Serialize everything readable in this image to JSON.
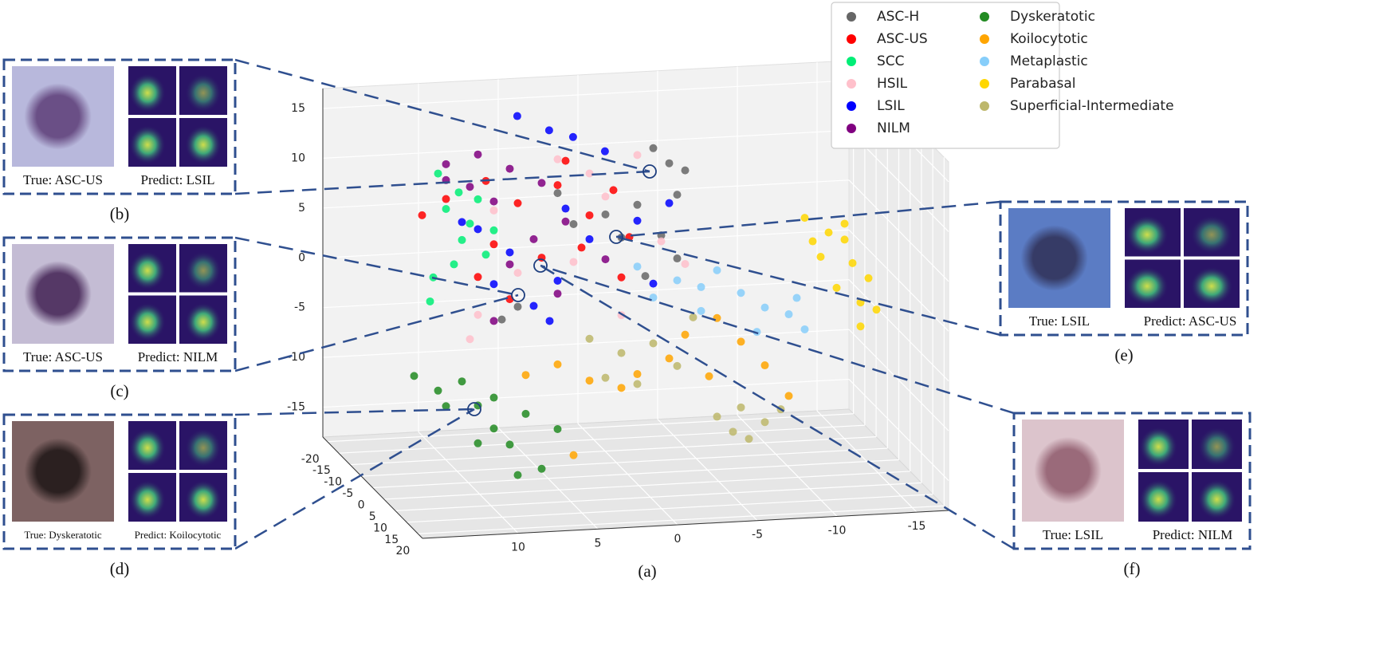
{
  "chart_data": {
    "type": "scatter3d",
    "caption": "(a)",
    "xlim": [
      16,
      -17
    ],
    "ylim": [
      -22,
      22
    ],
    "zlim": [
      -18,
      17
    ],
    "xticks": [
      10,
      5,
      0,
      -5,
      -10,
      -15
    ],
    "yticks": [
      -20,
      -15,
      -10,
      -5,
      0,
      5,
      10,
      15,
      20
    ],
    "zticks": [
      -15,
      -10,
      -5,
      0,
      5,
      10,
      15
    ],
    "grid": true,
    "legend": "upper right",
    "series": [
      {
        "name": "ASC-H",
        "color": "#666666",
        "x": [
          -1.6,
          -2.6,
          -3.1,
          -0.6,
          0.4,
          -2.1,
          -3.1,
          4.4,
          3.4,
          -3.6,
          -1.1,
          6.9,
          7.9,
          1.4
        ],
        "y": [
          0,
          0,
          0,
          0,
          0,
          0,
          0,
          0,
          0,
          0,
          0,
          0,
          0,
          0
        ],
        "z": [
          14.6,
          13,
          9.8,
          9,
          5.8,
          5.8,
          3.4,
          10.6,
          7.4,
          12.2,
          1.8,
          -0.6,
          -1.8,
          8.2
        ]
      },
      {
        "name": "ASC-US",
        "color": "#ff0000",
        "x": [
          11.4,
          8.9,
          6.9,
          4.4,
          2.4,
          0.9,
          8.4,
          5.4,
          2.9,
          0.4,
          9.4,
          7.4,
          12.9,
          3.9,
          -0.1
        ],
        "y": [
          0,
          0,
          0,
          0,
          0,
          0,
          0,
          0,
          0,
          0,
          0,
          0,
          0,
          0,
          0
        ],
        "z": [
          10.6,
          12.2,
          9.8,
          11.4,
          8.2,
          10.6,
          5.8,
          4.2,
          5,
          1.8,
          2.6,
          0.2,
          9.1,
          13.8,
          5.8
        ]
      },
      {
        "name": "SCC",
        "color": "#00ee76",
        "x": [
          11.9,
          11.4,
          10.4,
          10.9,
          9.9,
          12.2,
          9.4,
          8.9,
          12.4,
          10.6,
          8.4
        ],
        "y": [
          0,
          0,
          0,
          0,
          0,
          0,
          0,
          0,
          0,
          0,
          0
        ],
        "z": [
          13.2,
          9.6,
          6.4,
          4,
          8,
          2.8,
          10.4,
          4.8,
          0.4,
          11.2,
          7.2
        ]
      },
      {
        "name": "HSIL",
        "color": "#ffc0cb",
        "x": [
          9.4,
          9.9,
          4.4,
          1.4,
          -0.6,
          -2.1,
          6.9,
          3.4,
          0.4,
          -3.6,
          8.4,
          2.4
        ],
        "y": [
          0,
          0,
          0,
          0,
          0,
          0,
          0,
          0,
          0,
          0,
          0,
          0
        ],
        "z": [
          -1.2,
          -3.6,
          14,
          10,
          14,
          5.2,
          2.8,
          3.6,
          -2,
          2.8,
          9.2,
          12.4
        ]
      },
      {
        "name": "LSIL",
        "color": "#0000ff",
        "x": [
          4.8,
          2.8,
          1.3,
          -0.7,
          9.4,
          7.4,
          4.4,
          2.4,
          -0.6,
          -1.6,
          5.9,
          4.9,
          8.4,
          10.4,
          3.9,
          -2.6
        ],
        "y": [
          -15,
          -15,
          -15,
          -15,
          0,
          0,
          0,
          0,
          0,
          0,
          0,
          0,
          0,
          0,
          0,
          0
        ],
        "z": [
          14.9,
          13.3,
          12.5,
          10.9,
          7.4,
          4.9,
          1.8,
          5.8,
          7.4,
          1,
          -0.6,
          -2.2,
          1.8,
          8.2,
          9,
          9
        ]
      },
      {
        "name": "NILM",
        "color": "#800080",
        "x": [
          11.4,
          9.4,
          7.4,
          9.9,
          8.4,
          5.4,
          3.9,
          5.9,
          7.4,
          4.4,
          1.4,
          8.4,
          11.4
        ],
        "y": [
          0,
          0,
          0,
          0,
          0,
          0,
          0,
          0,
          0,
          0,
          0,
          0,
          0
        ],
        "z": [
          14.1,
          14.9,
          13.3,
          11.7,
          10.1,
          11.7,
          7.7,
          6.1,
          3.7,
          0.5,
          3.7,
          -1.9,
          12.5
        ]
      },
      {
        "name": "Dyskeratotic",
        "color": "#228b22",
        "x": [
          13.4,
          11.9,
          10.4,
          9.4,
          8.4,
          7.4,
          9.4,
          6.4,
          5.4,
          11.4,
          8.4,
          4.4,
          6.9
        ],
        "y": [
          0,
          0,
          0,
          0,
          0,
          0,
          0,
          0,
          0,
          0,
          0,
          0,
          0
        ],
        "z": [
          -7,
          -8.6,
          -7.8,
          -10.3,
          -12.7,
          -14.4,
          -14.1,
          -11.4,
          -17,
          -10.2,
          -9.6,
          -13.1,
          -17.5
        ]
      },
      {
        "name": "Koilocytotic",
        "color": "#ffa500",
        "x": [
          6.4,
          4.4,
          2.4,
          0.4,
          -0.6,
          -2.6,
          -3.6,
          -5.6,
          -7.1,
          -8.6,
          -10.1,
          3.4,
          -5.1
        ],
        "y": [
          0,
          0,
          0,
          0,
          0,
          0,
          0,
          0,
          0,
          0,
          0,
          0,
          0
        ],
        "z": [
          -7.5,
          -6.6,
          -8.4,
          -9.3,
          -8,
          -6.6,
          -4.3,
          -2.8,
          -5.3,
          -7.8,
          -11,
          -15.8,
          -8.6
        ]
      },
      {
        "name": "Metaplastic",
        "color": "#87cefa",
        "x": [
          -0.6,
          -3.1,
          -4.6,
          -5.6,
          -7.1,
          -8.6,
          -10.1,
          -11.1,
          -8.1,
          -4.6,
          -1.6,
          -10.6
        ],
        "y": [
          0,
          0,
          0,
          0,
          0,
          0,
          0,
          0,
          0,
          0,
          0,
          0
        ],
        "z": [
          2.8,
          1.2,
          0.4,
          2,
          -0.4,
          -2,
          -2.8,
          -4.4,
          -4.4,
          -2,
          -0.4,
          -1.2
        ]
      },
      {
        "name": "Parabasal",
        "color": "#ffd700",
        "x": [
          -11.1,
          -12.6,
          -13.6,
          -12.1,
          -14.1,
          -15.1,
          -13.1,
          -15.6,
          -14.6,
          -13.6,
          -11.6,
          -14.6
        ],
        "y": [
          0,
          0,
          0,
          0,
          0,
          0,
          0,
          0,
          0,
          0,
          0,
          0
        ],
        "z": [
          6.8,
          5.2,
          6,
          2.8,
          2,
          0.4,
          -0.4,
          -2.8,
          -4.4,
          4.4,
          4.4,
          -2
        ]
      },
      {
        "name": "Superficial-Intermediate",
        "color": "#bdb76b",
        "x": [
          2.4,
          0.4,
          -1.6,
          1.4,
          -0.6,
          -3.1,
          -4.1,
          -5.6,
          -7.1,
          -8.6,
          -7.6,
          -6.6,
          -9.6
        ],
        "y": [
          0,
          0,
          0,
          0,
          0,
          0,
          0,
          0,
          0,
          0,
          0,
          0,
          0
        ],
        "z": [
          -4.2,
          -5.8,
          -5,
          -8.2,
          -9,
          -7.4,
          -2.6,
          -12.7,
          -11.9,
          -13.5,
          -15.1,
          -14.3,
          -12.3
        ]
      }
    ]
  },
  "panels": [
    {
      "label": "(b)",
      "true": "True: ASC-US",
      "predict": "Predict: LSIL"
    },
    {
      "label": "(c)",
      "true": "True: ASC-US",
      "predict": "Predict: NILM"
    },
    {
      "label": "(d)",
      "true": "True: Dyskeratotic",
      "predict": "Predict: Koilocytotic"
    },
    {
      "label": "(e)",
      "true": "True: LSIL",
      "predict": "Predict: ASC-US"
    },
    {
      "label": "(f)",
      "true": "True: LSIL",
      "predict": "Predict: NILM"
    }
  ]
}
